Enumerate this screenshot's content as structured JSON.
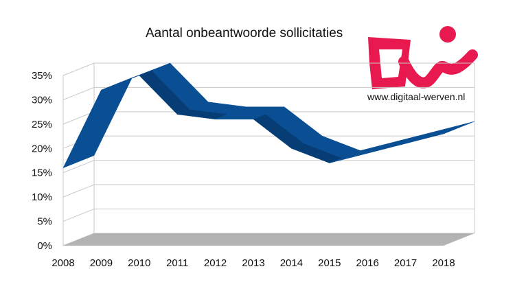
{
  "logo_url": "www.digitaal-werven.nl",
  "colors": {
    "series": "#0a4f93",
    "series_dark": "#063a6e",
    "floor": "#b3b3b3",
    "grid": "#c8c8c8",
    "logo": "#e8194f"
  },
  "chart_data": {
    "type": "area",
    "title": "Aantal onbeantwoorde sollicitaties",
    "xlabel": "",
    "ylabel": "",
    "categories": [
      "2008",
      "2009",
      "2010",
      "2011",
      "2012",
      "2013",
      "2014",
      "2015",
      "2016",
      "2017",
      "2018"
    ],
    "series": [
      {
        "values": [
          0.16,
          0.32,
          0.35,
          0.27,
          0.26,
          0.26,
          0.2,
          0.17,
          0.19,
          0.21,
          0.23
        ]
      }
    ],
    "ylim": [
      0,
      0.35
    ],
    "yticks": [
      "0%",
      "5%",
      "10%",
      "15%",
      "20%",
      "25%",
      "30%",
      "35%"
    ],
    "grid": true,
    "legend": "none",
    "style": "3d ribbon"
  }
}
